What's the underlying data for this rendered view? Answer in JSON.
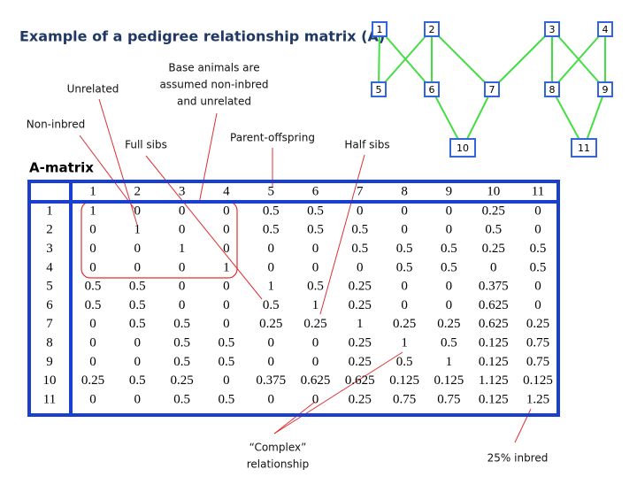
{
  "title": "Example of a pedigree relationship matrix (A)",
  "pedigree": {
    "nodes": [
      {
        "label": "1"
      },
      {
        "label": "2"
      },
      {
        "label": "3"
      },
      {
        "label": "4"
      },
      {
        "label": "5"
      },
      {
        "label": "6"
      },
      {
        "label": "7"
      },
      {
        "label": "8"
      },
      {
        "label": "9"
      },
      {
        "label": "10"
      },
      {
        "label": "11"
      }
    ]
  },
  "annotations": {
    "unrelated": [
      "Unrelated"
    ],
    "base_animals": [
      "Base animals are",
      "assumed non-inbred",
      "and unrelated"
    ],
    "non_inbred": [
      "Non-inbred"
    ],
    "full_sibs": [
      "Full sibs"
    ],
    "parent_offspring": [
      "Parent-offspring"
    ],
    "half_sibs": [
      "Half sibs"
    ],
    "complex": [
      "“Complex”",
      "relationship"
    ],
    "inbred": [
      "25% inbred"
    ]
  },
  "table": {
    "caption": "A-matrix",
    "columns": [
      1,
      2,
      3,
      4,
      5,
      6,
      7,
      8,
      9,
      10,
      11
    ],
    "row_labels": [
      1,
      2,
      3,
      4,
      5,
      6,
      7,
      8,
      9,
      10,
      11
    ],
    "rows": [
      [
        1,
        0,
        0,
        0,
        0.5,
        0.5,
        0,
        0,
        0,
        0.25,
        0
      ],
      [
        0,
        1,
        0,
        0,
        0.5,
        0.5,
        0.5,
        0,
        0,
        0.5,
        0
      ],
      [
        0,
        0,
        1,
        0,
        0,
        0,
        0.5,
        0.5,
        0.5,
        0.25,
        0.5
      ],
      [
        0,
        0,
        0,
        1,
        0,
        0,
        0,
        0.5,
        0.5,
        0,
        0.5
      ],
      [
        0.5,
        0.5,
        0,
        0,
        1,
        0.5,
        0.25,
        0,
        0,
        0.375,
        0
      ],
      [
        0.5,
        0.5,
        0,
        0,
        0.5,
        1,
        0.25,
        0,
        0,
        0.625,
        0
      ],
      [
        0,
        0.5,
        0.5,
        0,
        0.25,
        0.25,
        1,
        0.25,
        0.25,
        0.625,
        0.25
      ],
      [
        0,
        0,
        0.5,
        0.5,
        0,
        0,
        0.25,
        1,
        0.5,
        0.125,
        0.75
      ],
      [
        0,
        0,
        0.5,
        0.5,
        0,
        0,
        0.25,
        0.5,
        1,
        0.125,
        0.75
      ],
      [
        0.25,
        0.5,
        0.25,
        0,
        0.375,
        0.625,
        0.625,
        0.125,
        0.125,
        1.125,
        0.125
      ],
      [
        0,
        0,
        0.5,
        0.5,
        0,
        0,
        0.25,
        0.75,
        0.75,
        0.125,
        1.25
      ]
    ]
  }
}
